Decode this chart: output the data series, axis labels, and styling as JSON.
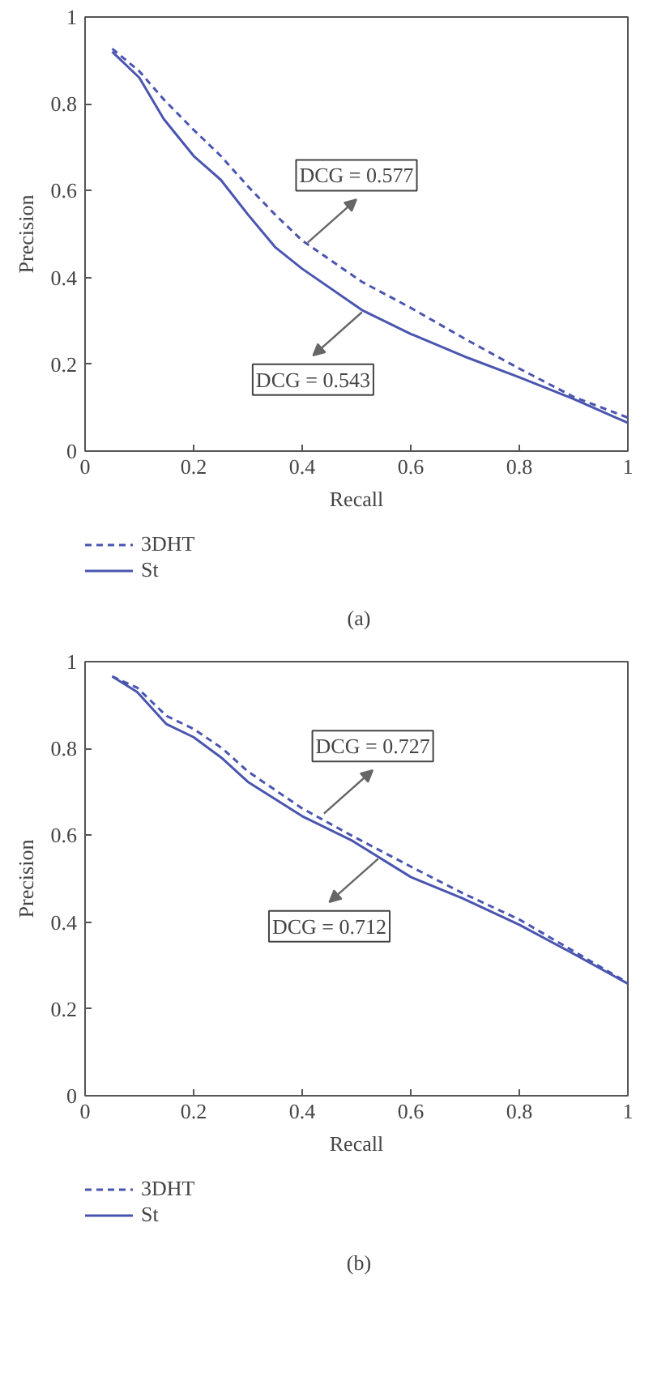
{
  "chart_data": [
    {
      "type": "line",
      "xlabel": "Recall",
      "ylabel": "Precision",
      "xlim": [
        0,
        1
      ],
      "ylim": [
        0,
        1
      ],
      "xticks": [
        0,
        0.2,
        0.4,
        0.6,
        0.8,
        1
      ],
      "yticks": [
        0,
        0.2,
        0.4,
        0.6,
        0.8,
        1
      ],
      "grid": false,
      "legend": "bottom",
      "x": [
        0.05,
        0.1,
        0.145,
        0.2,
        0.25,
        0.3,
        0.35,
        0.4,
        0.51,
        0.6,
        0.705,
        0.8,
        0.9,
        1.0
      ],
      "series": [
        {
          "name": "3DHT",
          "color": "#4a55b0",
          "line_style": "dashed",
          "values": [
            0.927,
            0.875,
            0.81,
            0.74,
            0.68,
            0.61,
            0.545,
            0.485,
            0.39,
            0.33,
            0.255,
            0.19,
            0.125,
            0.077
          ]
        },
        {
          "name": "St",
          "color": "#4a55b0",
          "line_style": "solid",
          "values": [
            0.92,
            0.86,
            0.765,
            0.68,
            0.625,
            0.545,
            0.47,
            0.42,
            0.325,
            0.27,
            0.215,
            0.17,
            0.12,
            0.065
          ]
        }
      ],
      "annotations": [
        {
          "text": "DCG = 0.577",
          "x": 0.41,
          "y": 0.48
        },
        {
          "text": "DCG = 0.543",
          "x": 0.51,
          "y": 0.32
        },
        "(a)"
      ]
    },
    {
      "type": "line",
      "xlabel": "Recall",
      "ylabel": "Precision",
      "xlim": [
        0,
        1
      ],
      "ylim": [
        0,
        1
      ],
      "xticks": [
        0,
        0.2,
        0.4,
        0.6,
        0.8,
        1
      ],
      "yticks": [
        0,
        0.2,
        0.4,
        0.6,
        0.8,
        1
      ],
      "grid": false,
      "legend": "bottom",
      "x": [
        0.05,
        0.096,
        0.15,
        0.2,
        0.253,
        0.3,
        0.4,
        0.49,
        0.6,
        0.695,
        0.8,
        0.9,
        1.0
      ],
      "series": [
        {
          "name": "3DHT",
          "color": "#4a55b0",
          "line_style": "dashed",
          "values": [
            0.966,
            0.94,
            0.875,
            0.845,
            0.8,
            0.747,
            0.662,
            0.6,
            0.528,
            0.467,
            0.406,
            0.333,
            0.26
          ]
        },
        {
          "name": "St",
          "color": "#4a55b0",
          "line_style": "solid",
          "values": [
            0.966,
            0.93,
            0.856,
            0.826,
            0.777,
            0.723,
            0.644,
            0.589,
            0.504,
            0.455,
            0.394,
            0.327,
            0.258
          ]
        }
      ],
      "annotations": [
        {
          "text": "DCG = 0.727",
          "x": 0.44,
          "y": 0.65
        },
        {
          "text": "DCG = 0.712",
          "x": 0.54,
          "y": 0.546
        },
        "(b)"
      ]
    }
  ]
}
